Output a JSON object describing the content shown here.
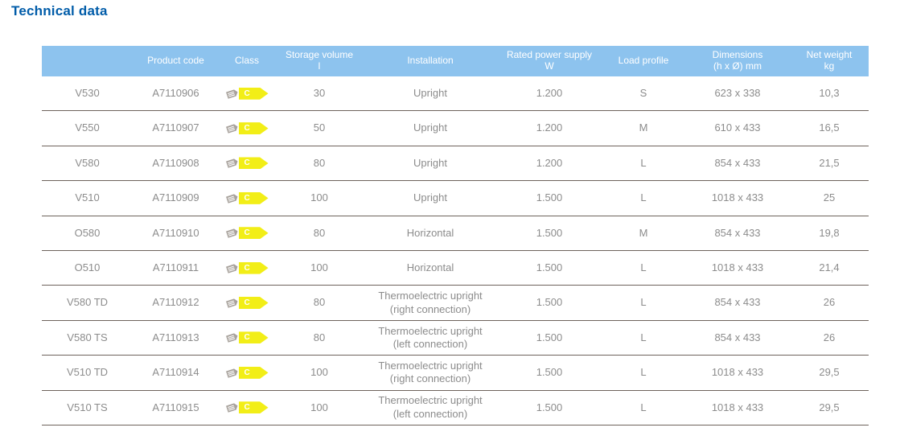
{
  "page": {
    "title": "Technical data"
  },
  "colors": {
    "title_blue": "#005CA9",
    "header_bg": "#8DC3EE",
    "header_text": "#FFFFFF",
    "body_text_gray": "#8C8C8C",
    "row_divider": "#6E635C",
    "energy_class_yellow": "#F2EE17",
    "energy_tag_icon_gray": "#A8A29C"
  },
  "icons": {
    "energy_class_cell_icon": "energy-tag-icon"
  },
  "table": {
    "columns": [
      {
        "key": "model",
        "label": ""
      },
      {
        "key": "product_code",
        "label": "Product code"
      },
      {
        "key": "energy_class",
        "label": "Class"
      },
      {
        "key": "storage_volume",
        "label": "Storage volume\nl"
      },
      {
        "key": "installation",
        "label": "Installation"
      },
      {
        "key": "rated_power",
        "label": "Rated power supply\nW"
      },
      {
        "key": "load_profile",
        "label": "Load profile"
      },
      {
        "key": "dimensions",
        "label": "Dimensions\n(h x Ø) mm"
      },
      {
        "key": "net_weight",
        "label": "Net weight\nkg"
      }
    ],
    "rows": [
      {
        "model": "V530",
        "product_code": "A7110906",
        "energy_class": "C",
        "storage_volume": "30",
        "installation": "Upright",
        "rated_power": "1.200",
        "load_profile": "S",
        "dimensions": "623 x 338",
        "net_weight": "10,3"
      },
      {
        "model": "V550",
        "product_code": "A7110907",
        "energy_class": "C",
        "storage_volume": "50",
        "installation": "Upright",
        "rated_power": "1.200",
        "load_profile": "M",
        "dimensions": "610 x 433",
        "net_weight": "16,5"
      },
      {
        "model": "V580",
        "product_code": "A7110908",
        "energy_class": "C",
        "storage_volume": "80",
        "installation": "Upright",
        "rated_power": "1.200",
        "load_profile": "L",
        "dimensions": "854 x 433",
        "net_weight": "21,5"
      },
      {
        "model": "V510",
        "product_code": "A7110909",
        "energy_class": "C",
        "storage_volume": "100",
        "installation": "Upright",
        "rated_power": "1.500",
        "load_profile": "L",
        "dimensions": "1018 x 433",
        "net_weight": "25"
      },
      {
        "model": "O580",
        "product_code": "A7110910",
        "energy_class": "C",
        "storage_volume": "80",
        "installation": "Horizontal",
        "rated_power": "1.500",
        "load_profile": "M",
        "dimensions": "854 x 433",
        "net_weight": "19,8"
      },
      {
        "model": "O510",
        "product_code": "A7110911",
        "energy_class": "C",
        "storage_volume": "100",
        "installation": "Horizontal",
        "rated_power": "1.500",
        "load_profile": "L",
        "dimensions": "1018 x 433",
        "net_weight": "21,4"
      },
      {
        "model": "V580 TD",
        "product_code": "A7110912",
        "energy_class": "C",
        "storage_volume": "80",
        "installation": "Thermoelectric upright\n(right connection)",
        "rated_power": "1.500",
        "load_profile": "L",
        "dimensions": "854 x 433",
        "net_weight": "26"
      },
      {
        "model": "V580 TS",
        "product_code": "A7110913",
        "energy_class": "C",
        "storage_volume": "80",
        "installation": "Thermoelectric upright\n(left connection)",
        "rated_power": "1.500",
        "load_profile": "L",
        "dimensions": "854 x 433",
        "net_weight": "26"
      },
      {
        "model": "V510 TD",
        "product_code": "A7110914",
        "energy_class": "C",
        "storage_volume": "100",
        "installation": "Thermoelectric upright\n(right connection)",
        "rated_power": "1.500",
        "load_profile": "L",
        "dimensions": "1018 x 433",
        "net_weight": "29,5"
      },
      {
        "model": "V510 TS",
        "product_code": "A7110915",
        "energy_class": "C",
        "storage_volume": "100",
        "installation": "Thermoelectric upright\n(left connection)",
        "rated_power": "1.500",
        "load_profile": "L",
        "dimensions": "1018 x 433",
        "net_weight": "29,5"
      }
    ]
  }
}
